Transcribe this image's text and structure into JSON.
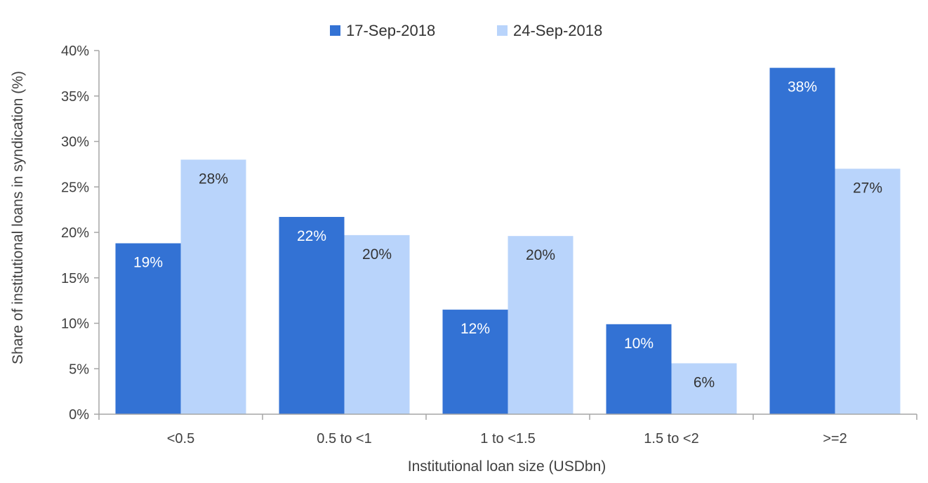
{
  "chart_data": {
    "type": "bar",
    "title": "",
    "xlabel": "Institutional loan size (USDbn)",
    "ylabel": "Share of institutional loans in syndication (%)",
    "ylim": [
      0,
      40
    ],
    "yticks": [
      0,
      5,
      10,
      15,
      20,
      25,
      30,
      35,
      40
    ],
    "ytick_labels": [
      "0%",
      "5%",
      "10%",
      "15%",
      "20%",
      "25%",
      "30%",
      "35%",
      "40%"
    ],
    "categories": [
      "<0.5",
      "0.5 to <1",
      "1 to <1.5",
      "1.5 to <2",
      ">=2"
    ],
    "series": [
      {
        "name": "17-Sep-2018",
        "color": "#3372d4",
        "label_color": "#ffffff",
        "values": [
          18.8,
          21.7,
          11.5,
          9.9,
          38.1
        ],
        "labels": [
          "19%",
          "22%",
          "12%",
          "10%",
          "38%"
        ]
      },
      {
        "name": "24-Sep-2018",
        "color": "#b9d4fb",
        "label_color": "#333333",
        "values": [
          28.0,
          19.7,
          19.6,
          5.6,
          27.0
        ],
        "labels": [
          "28%",
          "20%",
          "20%",
          "6%",
          "27%"
        ]
      }
    ],
    "legend_position": "top-center",
    "grid": false
  }
}
